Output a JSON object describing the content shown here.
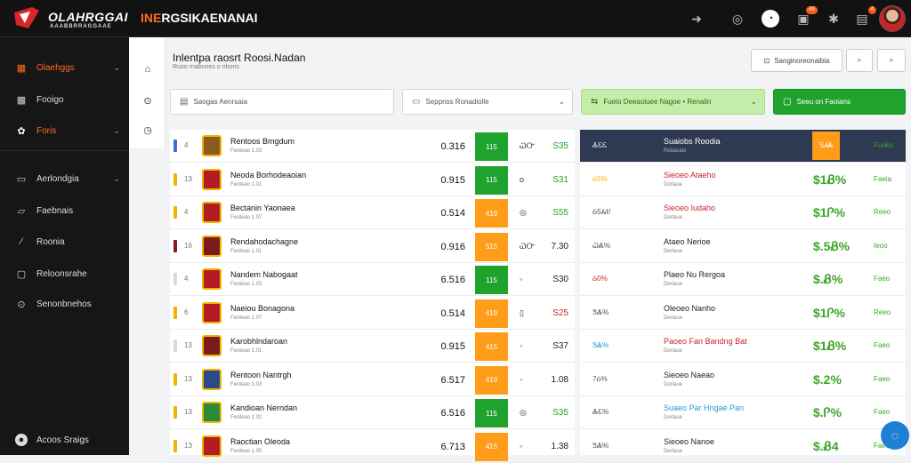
{
  "topbar": {
    "logo_text": "OLAHRGGAI",
    "logo_sub": "AAABBRRAGGAAE",
    "title_accent": "INE",
    "title_rest": "RGSIKAENANAI",
    "icons": [
      "bolt-icon",
      "chat-icon",
      "user-circle-icon",
      "briefcase-icon",
      "bug-icon",
      "bell-icon"
    ],
    "badge_briefcase": "45",
    "badge_bell": "4"
  },
  "sidebar": {
    "items": [
      {
        "icon": "grid-icon",
        "label": "Olaehggs",
        "chev": true,
        "active": true
      },
      {
        "icon": "grid-icon",
        "label": "Fooigo",
        "chev": false,
        "active": false
      },
      {
        "icon": "gear-icon",
        "label": "Foris",
        "chev": true,
        "active": true
      },
      {
        "icon": "doc-icon",
        "label": "Aerlondgia",
        "chev": true,
        "active": false
      },
      {
        "icon": "folder-icon",
        "label": "Faebnais",
        "chev": false,
        "active": false
      },
      {
        "icon": "wrench-icon",
        "label": "Roonia",
        "chev": false,
        "active": false
      },
      {
        "icon": "chart-icon",
        "label": "Reloonsrahe",
        "chev": false,
        "active": false
      },
      {
        "icon": "check-icon",
        "label": "Senonbnehos",
        "chev": false,
        "active": false
      }
    ],
    "footer_label": "Acoos Sraigs"
  },
  "header": {
    "title": "Inlentpa raosrt Roosi.Nadan",
    "subtitle": "Ruoo rnabunes o nbons",
    "btn_primary": "Sanginoreonaibia",
    "search_field": "Saogas Aenrsaia",
    "select_field": "Seppnss Ronadiolle",
    "lime_field": "Fueio Deeaoiuee Nagoe • Renalin",
    "green_field": "Seeu on Faoians"
  },
  "colors": {
    "accent": "#ff6a1f",
    "green": "#1fa32d",
    "orange": "#ff9c1a",
    "lime": "#c5edaa",
    "navy": "#2d3a52"
  },
  "rows": [
    {
      "flag": "#3b6fd1",
      "num": "4",
      "crest": "#8a5a1f",
      "name": "Rentoos Bmgdum",
      "sub": "Feoteao 1.03",
      "v1": "0.316",
      "sq": "115",
      "sqc": "#1fa32d",
      "mid": "ᏇᏅ",
      "v2": "S35",
      "v2c": "#1fa32d"
    },
    {
      "flag": "#f0b400",
      "num": "13",
      "crest": "#b21d24",
      "name": "Neoda Borhodeaoian",
      "sub": "Feoteao 1.01",
      "v1": "0.915",
      "sq": "115",
      "sqc": "#1fa32d",
      "mid": "o",
      "v2": "S31",
      "v2c": "#1fa32d"
    },
    {
      "flag": "#f0b400",
      "num": "4",
      "crest": "#b21d24",
      "name": "Bectanin Yaonaea",
      "sub": "Feoteao 1.07",
      "v1": "0.514",
      "sq": "419",
      "sqc": "#ff9c1a",
      "mid": "◎",
      "v2": "S55",
      "v2c": "#1fa32d"
    },
    {
      "flag": "#7a2020",
      "num": "16",
      "crest": "#7a1b1b",
      "name": "Rendahodachagne",
      "sub": "Feoteao 1.01",
      "v1": "0.916",
      "sq": "515",
      "sqc": "#ff9c1a",
      "mid": "ᏇᏅ",
      "v2": "7.30",
      "v2c": "#222"
    },
    {
      "flag": "#d9d9d9",
      "num": "4",
      "crest": "#b21d24",
      "name": "Nandem Nabogaat",
      "sub": "Feoteao 1.03",
      "v1": "6.516",
      "sq": "115",
      "sqc": "#1fa32d",
      "mid": "◦",
      "v2": "S30",
      "v2c": "#222"
    },
    {
      "flag": "#f0b400",
      "num": "6",
      "crest": "#b21d24",
      "name": "Naeiou Bonagona",
      "sub": "Feoteao 1.07",
      "v1": "0.514",
      "sq": "419",
      "sqc": "#ff9c1a",
      "mid": "▯",
      "v2": "S25",
      "v2c": "#c8242b"
    },
    {
      "flag": "#d9d9d9",
      "num": "13",
      "crest": "#7a1b1b",
      "name": "Karobhlndaroan",
      "sub": "Feoteao 1.01",
      "v1": "0.915",
      "sq": "415",
      "sqc": "#ff9c1a",
      "mid": "◦",
      "v2": "S37",
      "v2c": "#222"
    },
    {
      "flag": "#f0b400",
      "num": "13",
      "crest": "#2a4a8a",
      "name": "Rentoon Nantrgh",
      "sub": "Feoteao 1.03",
      "v1": "6.517",
      "sq": "419",
      "sqc": "#ff9c1a",
      "mid": "◦",
      "v2": "1.08",
      "v2c": "#222"
    },
    {
      "flag": "#f0b400",
      "num": "13",
      "crest": "#2a8a3a",
      "name": "Kandioan Nerndan",
      "sub": "Feoteao 1.02",
      "v1": "6.516",
      "sq": "115",
      "sqc": "#1fa32d",
      "mid": "◎",
      "v2": "S35",
      "v2c": "#1fa32d"
    },
    {
      "flag": "#f0b400",
      "num": "13",
      "crest": "#b21d24",
      "name": "Raoctian Oleoda",
      "sub": "Feoteao 1.05",
      "v1": "6.713",
      "sq": "415",
      "sqc": "#ff9c1a",
      "mid": "◦",
      "v2": "1.38",
      "v2c": "#222"
    }
  ],
  "right_rows": [
    {
      "head": true,
      "pct": "ᏜᏋᏋ",
      "pctc": "#dfe6f2",
      "title": "Suaiobs Roodia",
      "titlec": "#fff",
      "sub": "Rebasaio",
      "amt": "",
      "amt_box": "SᏗᏜ",
      "lnk": "Fuoks",
      "lnkc": "#3da629"
    },
    {
      "pct": "Ᏽ5%",
      "pctc": "#f0b400",
      "title": "Sieoeo Ataeho",
      "titlec": "#c8242b",
      "sub": "Derlaue",
      "amt": "$1Ᏸ%",
      "lnk": "Faeia",
      "lnkc": "#3da629"
    },
    {
      "pct": "Ᏽ5ᏜᏌ",
      "pctc": "#555",
      "title": "Sieoeo Iudaho",
      "titlec": "#c8242b",
      "sub": "Derlaue",
      "amt": "$1Ꮅ%",
      "lnk": "Reeo",
      "lnkc": "#3da629"
    },
    {
      "pct": "ᏇᏜ%",
      "pctc": "#555",
      "title": "Ataeo Nerioe",
      "titlec": "#222",
      "sub": "Derlaue",
      "amt": "$.5Ᏸ%",
      "lnk": "Ieoo",
      "lnkc": "#3da629"
    },
    {
      "pct": "Ᏽ0%",
      "pctc": "#c8242b",
      "title": "Plaeo Nu Rergoa",
      "titlec": "#222",
      "sub": "Derlaue",
      "amt": "$.Ᏸ%",
      "lnk": "Faeo",
      "lnkc": "#3da629"
    },
    {
      "pct": "ᏕᏜ%",
      "pctc": "#555",
      "title": "Oleoeo Nanho",
      "titlec": "#222",
      "sub": "Derlaue",
      "amt": "$1Ꮅ%",
      "lnk": "Reeo",
      "lnkc": "#3da629"
    },
    {
      "pct": "ᏕᏜ%",
      "pctc": "#1b9bd1",
      "title": "Paoeo Fan Bandng Bat",
      "titlec": "#c8242b",
      "sub": "Derlaue",
      "amt": "$1Ᏸ%",
      "lnk": "Faeo",
      "lnkc": "#3da629"
    },
    {
      "pct": "7Ᏽ%",
      "pctc": "#555",
      "title": "Sieoeo Naeao",
      "titlec": "#222",
      "sub": "Derlaue",
      "amt": "$.2%",
      "lnk": "Faeo",
      "lnkc": "#3da629"
    },
    {
      "pct": "ᏜᏋ%",
      "pctc": "#555",
      "title": "Suaeo Par Hngae Pan",
      "titlec": "#1b9bd1",
      "sub": "Derlaue",
      "amt": "$.Ꮅ%",
      "lnk": "Faeo",
      "lnkc": "#3da629"
    },
    {
      "pct": "ᏕᏜ%",
      "pctc": "#555",
      "title": "Sieoeo Nanoe",
      "titlec": "#222",
      "sub": "Derlaue",
      "amt": "$.Ᏸ4",
      "lnk": "Faeo",
      "lnkc": "#3da629"
    }
  ]
}
